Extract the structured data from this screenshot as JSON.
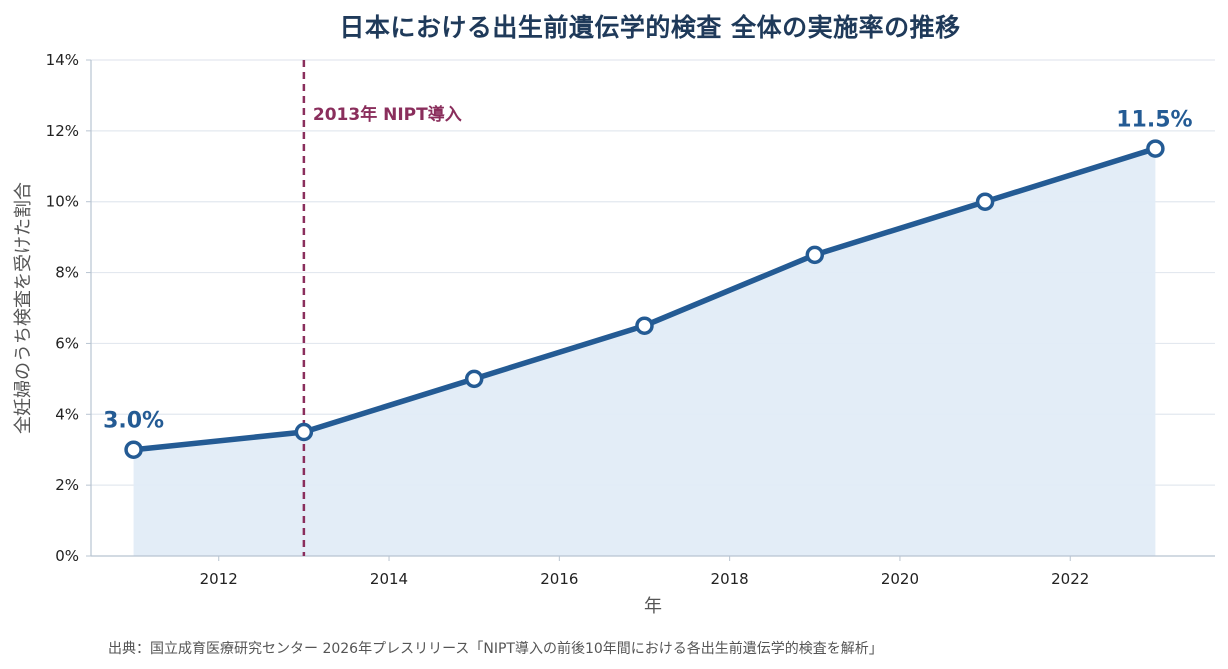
{
  "chart_data": {
    "type": "line",
    "title": "日本における出生前遺伝学的検査 全体の実施率の推移",
    "xlabel": "年",
    "ylabel": "全妊婦のうち検査を受けた割合",
    "x": [
      2011,
      2013,
      2015,
      2017,
      2019,
      2021,
      2023
    ],
    "series": [
      {
        "values": [
          3.0,
          3.5,
          5.0,
          6.5,
          8.5,
          10.0,
          11.5
        ]
      }
    ],
    "xlim": [
      2010.5,
      2023.7
    ],
    "ylim": [
      0,
      14
    ],
    "x_ticks": [
      2012,
      2014,
      2016,
      2018,
      2020,
      2022
    ],
    "x_tick_labels": [
      "2012",
      "2014",
      "2016",
      "2018",
      "2020",
      "2022"
    ],
    "y_ticks": [
      0,
      2,
      4,
      6,
      8,
      10,
      12,
      14
    ],
    "y_tick_labels": [
      "0%",
      "2%",
      "4%",
      "6%",
      "8%",
      "10%",
      "12%",
      "14%"
    ],
    "grid": "horizontal",
    "area_fill": true,
    "annotations": [
      {
        "type": "vline",
        "x": 2013,
        "label": "2013年 NIPT導入"
      },
      {
        "type": "point-label",
        "x": 2011,
        "y": 3.0,
        "label": "3.0%"
      },
      {
        "type": "point-label",
        "x": 2023,
        "y": 11.5,
        "label": "11.5%"
      }
    ],
    "colors": {
      "line": "#245b94",
      "area": "#e1ecf7",
      "vline": "#8a2e5c",
      "title": "#1f3a5a",
      "grid": "#e3e8ef",
      "axis": "#b8c4d1"
    }
  },
  "source": "出典：国立成育医療研究センター 2026年プレスリリース「NIPT導入の前後10年間における各出生前遺伝学的検査を解析」"
}
